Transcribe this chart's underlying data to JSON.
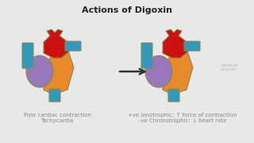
{
  "title": "Actions of Digoxin",
  "title_fontsize": 8,
  "title_fontweight": "bold",
  "bg_color": "#e8e8e8",
  "left_label_line1": "Poor cardiac contraction",
  "left_label_line2": "Tachycardia",
  "right_label_line1": "+ve Ionotrophic: ↑ force of contraction",
  "right_label_line2": "-ve Chronotrophic: ↓ heart rate",
  "watermark_line1": "medical",
  "watermark_line2": "snippet",
  "label_fontsize": 5.0,
  "label_color": "#888888",
  "arrow_color": "#333333",
  "colors": {
    "red": "#cc1111",
    "orange": "#e8892a",
    "purple": "#9977bb",
    "blue": "#3399bb",
    "outline": "#888855"
  }
}
